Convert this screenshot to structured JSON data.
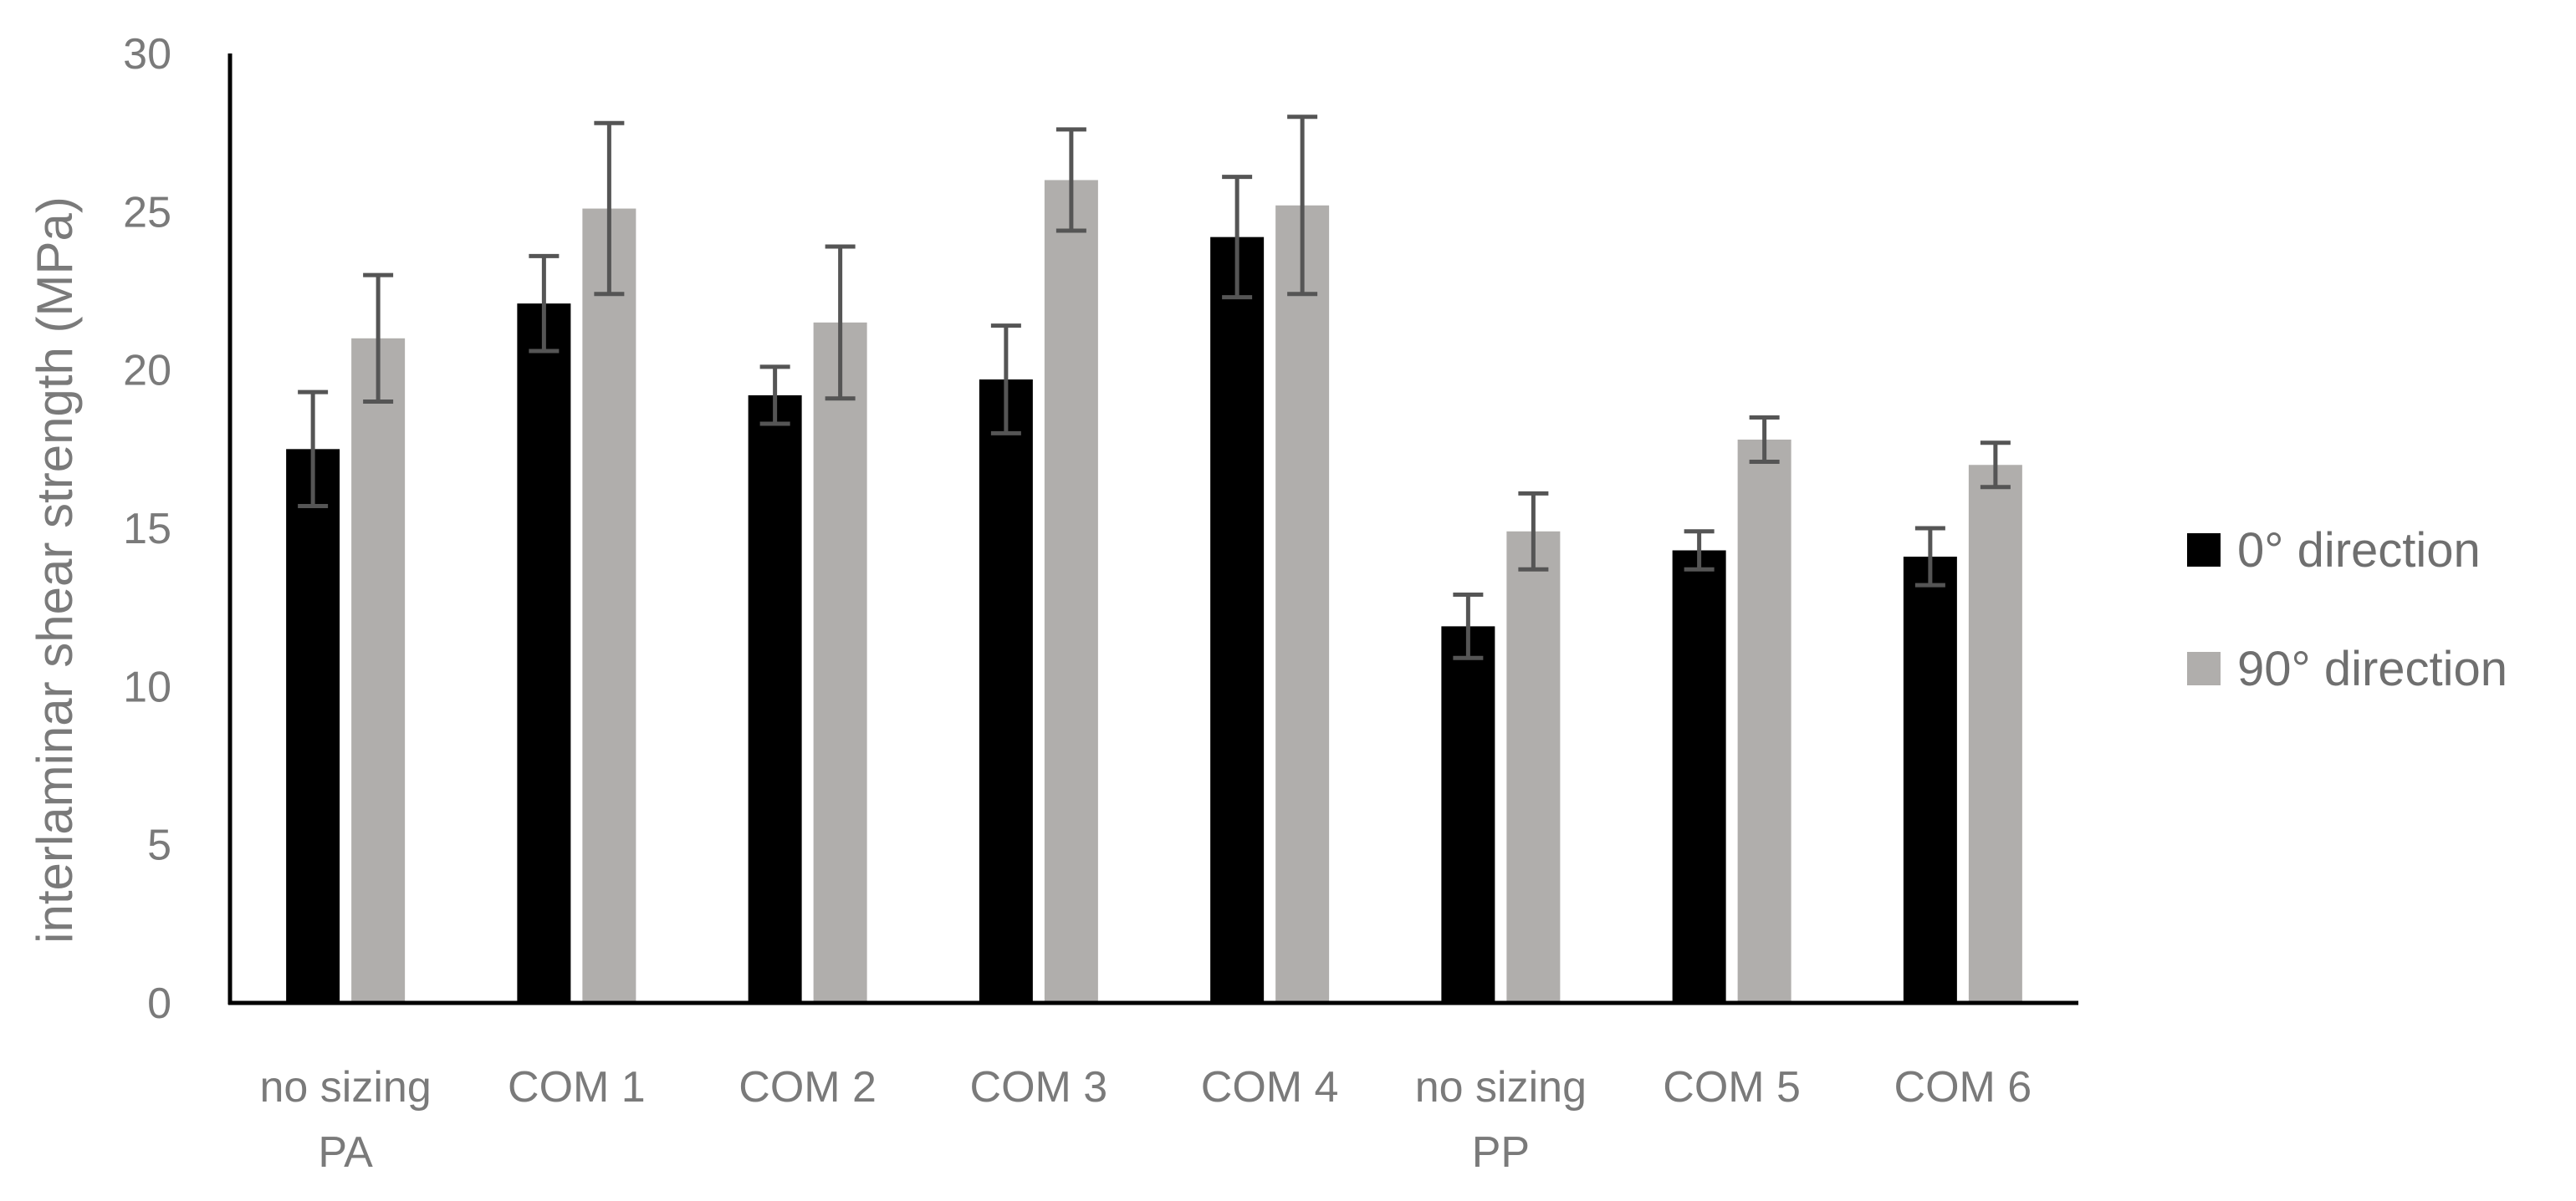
{
  "chart_data": {
    "type": "bar",
    "title": "",
    "xlabel": "",
    "ylabel": "interlaminar shear strength (MPa)",
    "ylim": [
      0,
      30
    ],
    "yticks": [
      0,
      5,
      10,
      15,
      20,
      25,
      30
    ],
    "grid": false,
    "legend_position": "right",
    "categories": [
      [
        "no sizing",
        "PA"
      ],
      [
        "COM 1"
      ],
      [
        "COM 2"
      ],
      [
        "COM 3"
      ],
      [
        "COM 4"
      ],
      [
        "no sizing",
        "PP"
      ],
      [
        "COM 5"
      ],
      [
        "COM 6"
      ]
    ],
    "series": [
      {
        "name": "0° direction",
        "color": "#000000",
        "values": [
          17.5,
          22.1,
          19.2,
          19.7,
          24.2,
          11.9,
          14.3,
          14.1
        ],
        "errors": [
          1.8,
          1.5,
          0.9,
          1.7,
          1.9,
          1.0,
          0.6,
          0.9
        ]
      },
      {
        "name": "90° direction",
        "color": "#b0aeac",
        "values": [
          21.0,
          25.1,
          21.5,
          26.0,
          25.2,
          14.9,
          17.8,
          17.0
        ],
        "errors": [
          2.0,
          2.7,
          2.4,
          1.6,
          2.8,
          1.2,
          0.7,
          0.7
        ]
      }
    ],
    "errorbar_color": "#555555",
    "axis_color": "#000000"
  }
}
